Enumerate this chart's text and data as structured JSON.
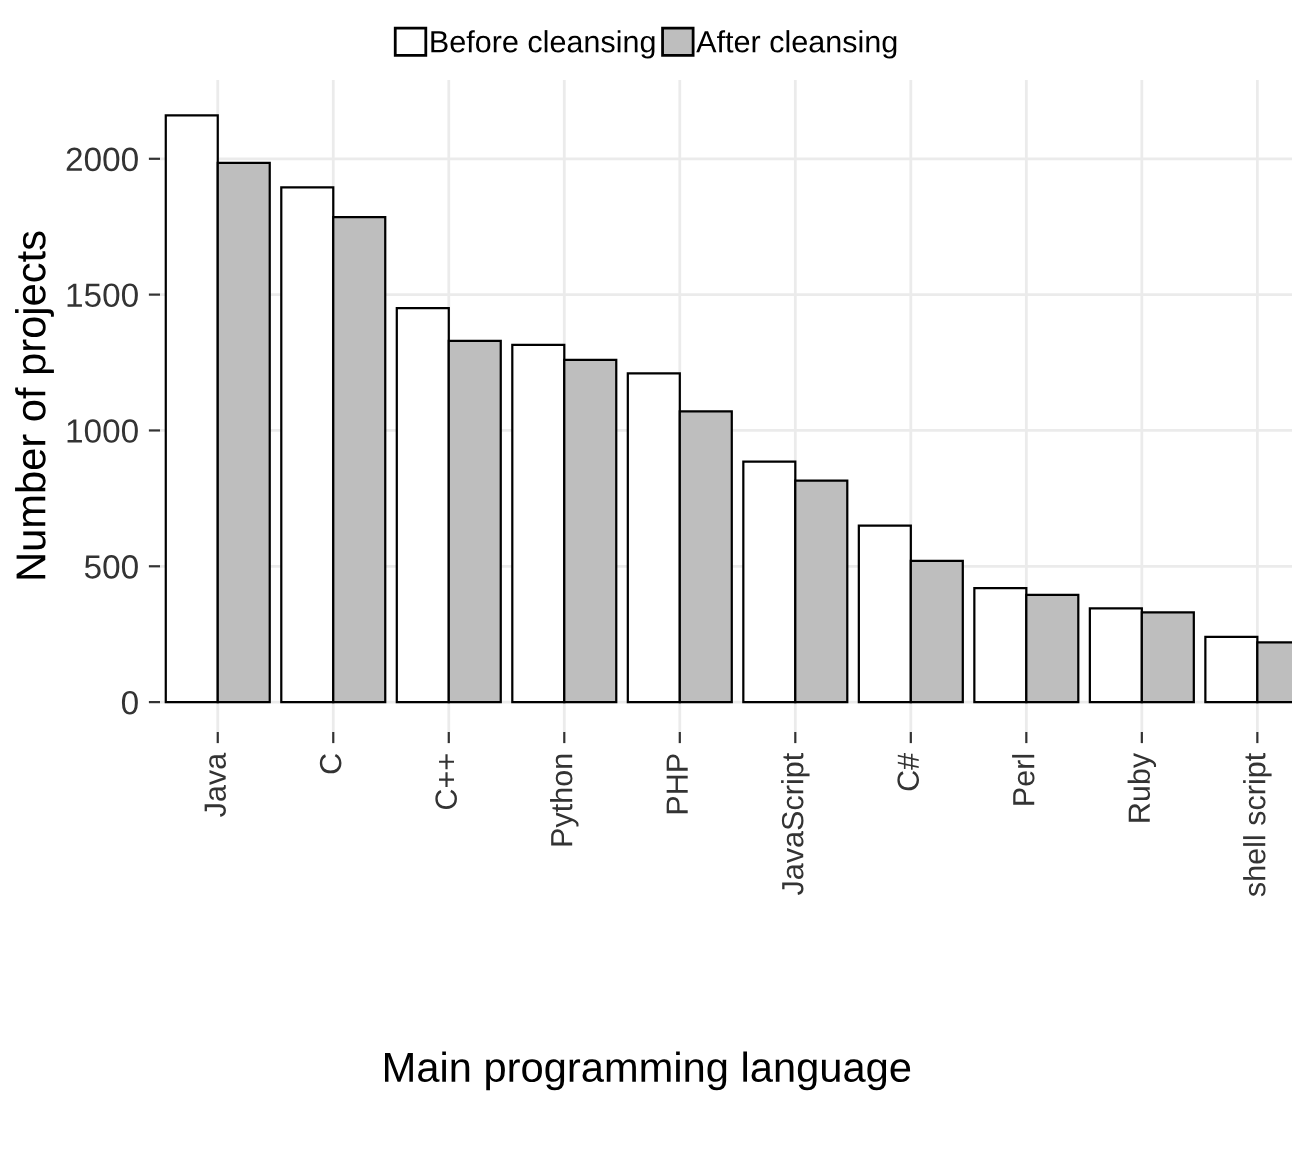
{
  "chart_data": {
    "type": "bar",
    "xlabel": "Main programming language",
    "ylabel": "Number of projects",
    "categories": [
      "Java",
      "C",
      "C++",
      "Python",
      "PHP",
      "JavaScript",
      "C#",
      "Perl",
      "Ruby",
      "shell script"
    ],
    "series": [
      {
        "name": "Before cleansing",
        "color": "#ffffff",
        "values": [
          2160,
          1895,
          1450,
          1315,
          1210,
          885,
          650,
          420,
          345,
          240
        ]
      },
      {
        "name": "After cleansing",
        "color": "#bebebe",
        "values": [
          1985,
          1785,
          1330,
          1260,
          1070,
          815,
          520,
          395,
          330,
          220
        ]
      }
    ],
    "ylim": [
      -110,
      2290
    ],
    "yticks": [
      0,
      500,
      1000,
      1500,
      2000
    ],
    "grid": true,
    "legend": "top"
  }
}
